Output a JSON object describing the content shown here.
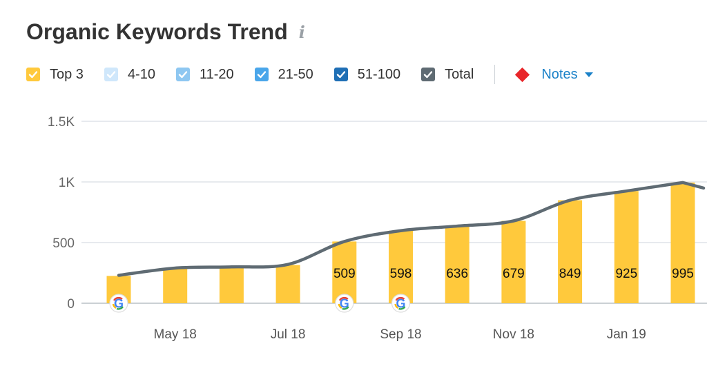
{
  "header": {
    "title": "Organic Keywords Trend",
    "info_icon": "info-icon"
  },
  "legend": {
    "items": [
      {
        "label": "Top 3",
        "color": "#ffc93c",
        "checked": true
      },
      {
        "label": "4-10",
        "color": "#cfe7fb",
        "checked": true
      },
      {
        "label": "11-20",
        "color": "#8ec7f1",
        "checked": true
      },
      {
        "label": "21-50",
        "color": "#4aa6ea",
        "checked": true
      },
      {
        "label": "51-100",
        "color": "#1f6fb5",
        "checked": true
      },
      {
        "label": "Total",
        "color": "#5f6b73",
        "checked": true
      }
    ],
    "notes_label": "Notes",
    "notes_color": "#e8262a"
  },
  "chart_data": {
    "type": "bar",
    "categories": [
      "Apr 18",
      "May 18",
      "Jun 18",
      "Jul 18",
      "Aug 18",
      "Sep 18",
      "Oct 18",
      "Nov 18",
      "Dec 18",
      "Jan 19",
      "Feb 19"
    ],
    "x_tick_labels": [
      "May 18",
      "Jul 18",
      "Sep 18",
      "Nov 18",
      "Jan 19"
    ],
    "series": [
      {
        "name": "Top 3",
        "type": "bar",
        "color": "#ffc93c",
        "values": [
          225,
          285,
          300,
          315,
          509,
          598,
          636,
          679,
          849,
          925,
          995
        ],
        "data_labels": [
          "",
          "",
          "",
          "",
          "509",
          "598",
          "636",
          "679",
          "849",
          "925",
          "995"
        ]
      },
      {
        "name": "Total",
        "type": "line",
        "color": "#5f6b73",
        "values": [
          230,
          290,
          300,
          320,
          509,
          598,
          636,
          679,
          849,
          925,
          995
        ]
      }
    ],
    "y_ticks": [
      0,
      500,
      1000,
      1500
    ],
    "y_tick_labels": [
      "0",
      "500",
      "1K",
      "1.5K"
    ],
    "ylim": [
      0,
      1500
    ],
    "grid": true,
    "google_update_markers": [
      "Apr 18",
      "Aug 18",
      "Sep 18"
    ]
  }
}
